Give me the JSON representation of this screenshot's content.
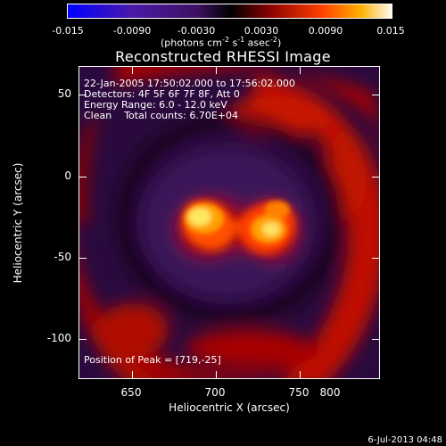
{
  "colorbar": {
    "ticks": [
      "-0.015",
      "-0.0090",
      "-0.0030",
      "0.0030",
      "0.0090",
      "0.015"
    ],
    "units": "(photons cm",
    "units_exp1": "-2",
    "units_mid1": " s",
    "units_exp2": "-1",
    "units_mid2": " asec",
    "units_exp3": "-2",
    "units_end": ")"
  },
  "title": "Reconstructed RHESSI Image",
  "info": {
    "line1": "22-Jan-2005 17:50:02.000 to 17:56:02.000",
    "line2": "Detectors: 4F 5F 6F 7F 8F, Att 0",
    "line3": "Energy Range: 6.0 - 12.0 keV",
    "line4": "Clean    Total counts: 6.70E+04",
    "peak": "Position of Peak = [719,-25]"
  },
  "axes": {
    "x_title": "Heliocentric X (arcsec)",
    "y_title": "Heliocentric Y (arcsec)",
    "x_ticks": [
      "650",
      "700",
      "750",
      "800"
    ],
    "y_ticks": [
      "50",
      "0",
      "-50",
      "-100"
    ]
  },
  "timestamp": "6-Jul-2013 04:48"
}
